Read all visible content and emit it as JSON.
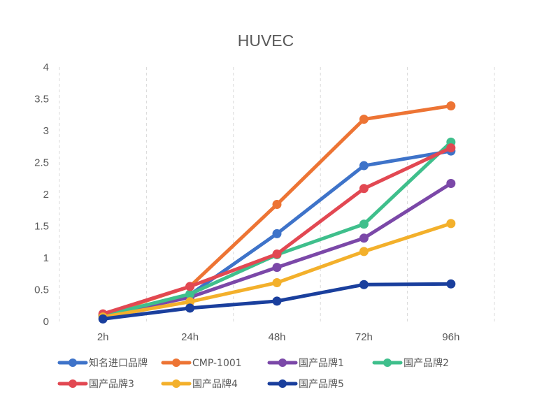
{
  "chart_data": {
    "type": "line",
    "title": "HUVEC",
    "xlabel": "",
    "ylabel": "",
    "categories": [
      "2h",
      "24h",
      "48h",
      "72h",
      "96h"
    ],
    "ylim": [
      0,
      4
    ],
    "yticks": [
      "0",
      "0.5",
      "1",
      "1.5",
      "2",
      "2.5",
      "3",
      "3.5",
      "4"
    ],
    "grid": "vertical dashed",
    "legend_position": "bottom",
    "series": [
      {
        "name": "知名进口品牌",
        "color": "#3E73C9",
        "values": [
          0.09,
          0.42,
          1.38,
          2.45,
          2.68
        ]
      },
      {
        "name": "CMP-1001",
        "color": "#ED7434",
        "values": [
          0.1,
          0.55,
          1.84,
          3.18,
          3.39
        ]
      },
      {
        "name": "国产品牌1",
        "color": "#7B48A8",
        "values": [
          0.09,
          0.38,
          0.85,
          1.31,
          2.17
        ]
      },
      {
        "name": "国产品牌2",
        "color": "#3FBF8C",
        "values": [
          0.09,
          0.43,
          1.05,
          1.53,
          2.82
        ]
      },
      {
        "name": "国产品牌3",
        "color": "#E24852",
        "values": [
          0.12,
          0.55,
          1.06,
          2.09,
          2.73
        ]
      },
      {
        "name": "国产品牌4",
        "color": "#F3B02B",
        "values": [
          0.07,
          0.31,
          0.61,
          1.1,
          1.54
        ]
      },
      {
        "name": "国产品牌5",
        "color": "#1A3F9D",
        "values": [
          0.04,
          0.21,
          0.32,
          0.58,
          0.59
        ]
      }
    ]
  }
}
